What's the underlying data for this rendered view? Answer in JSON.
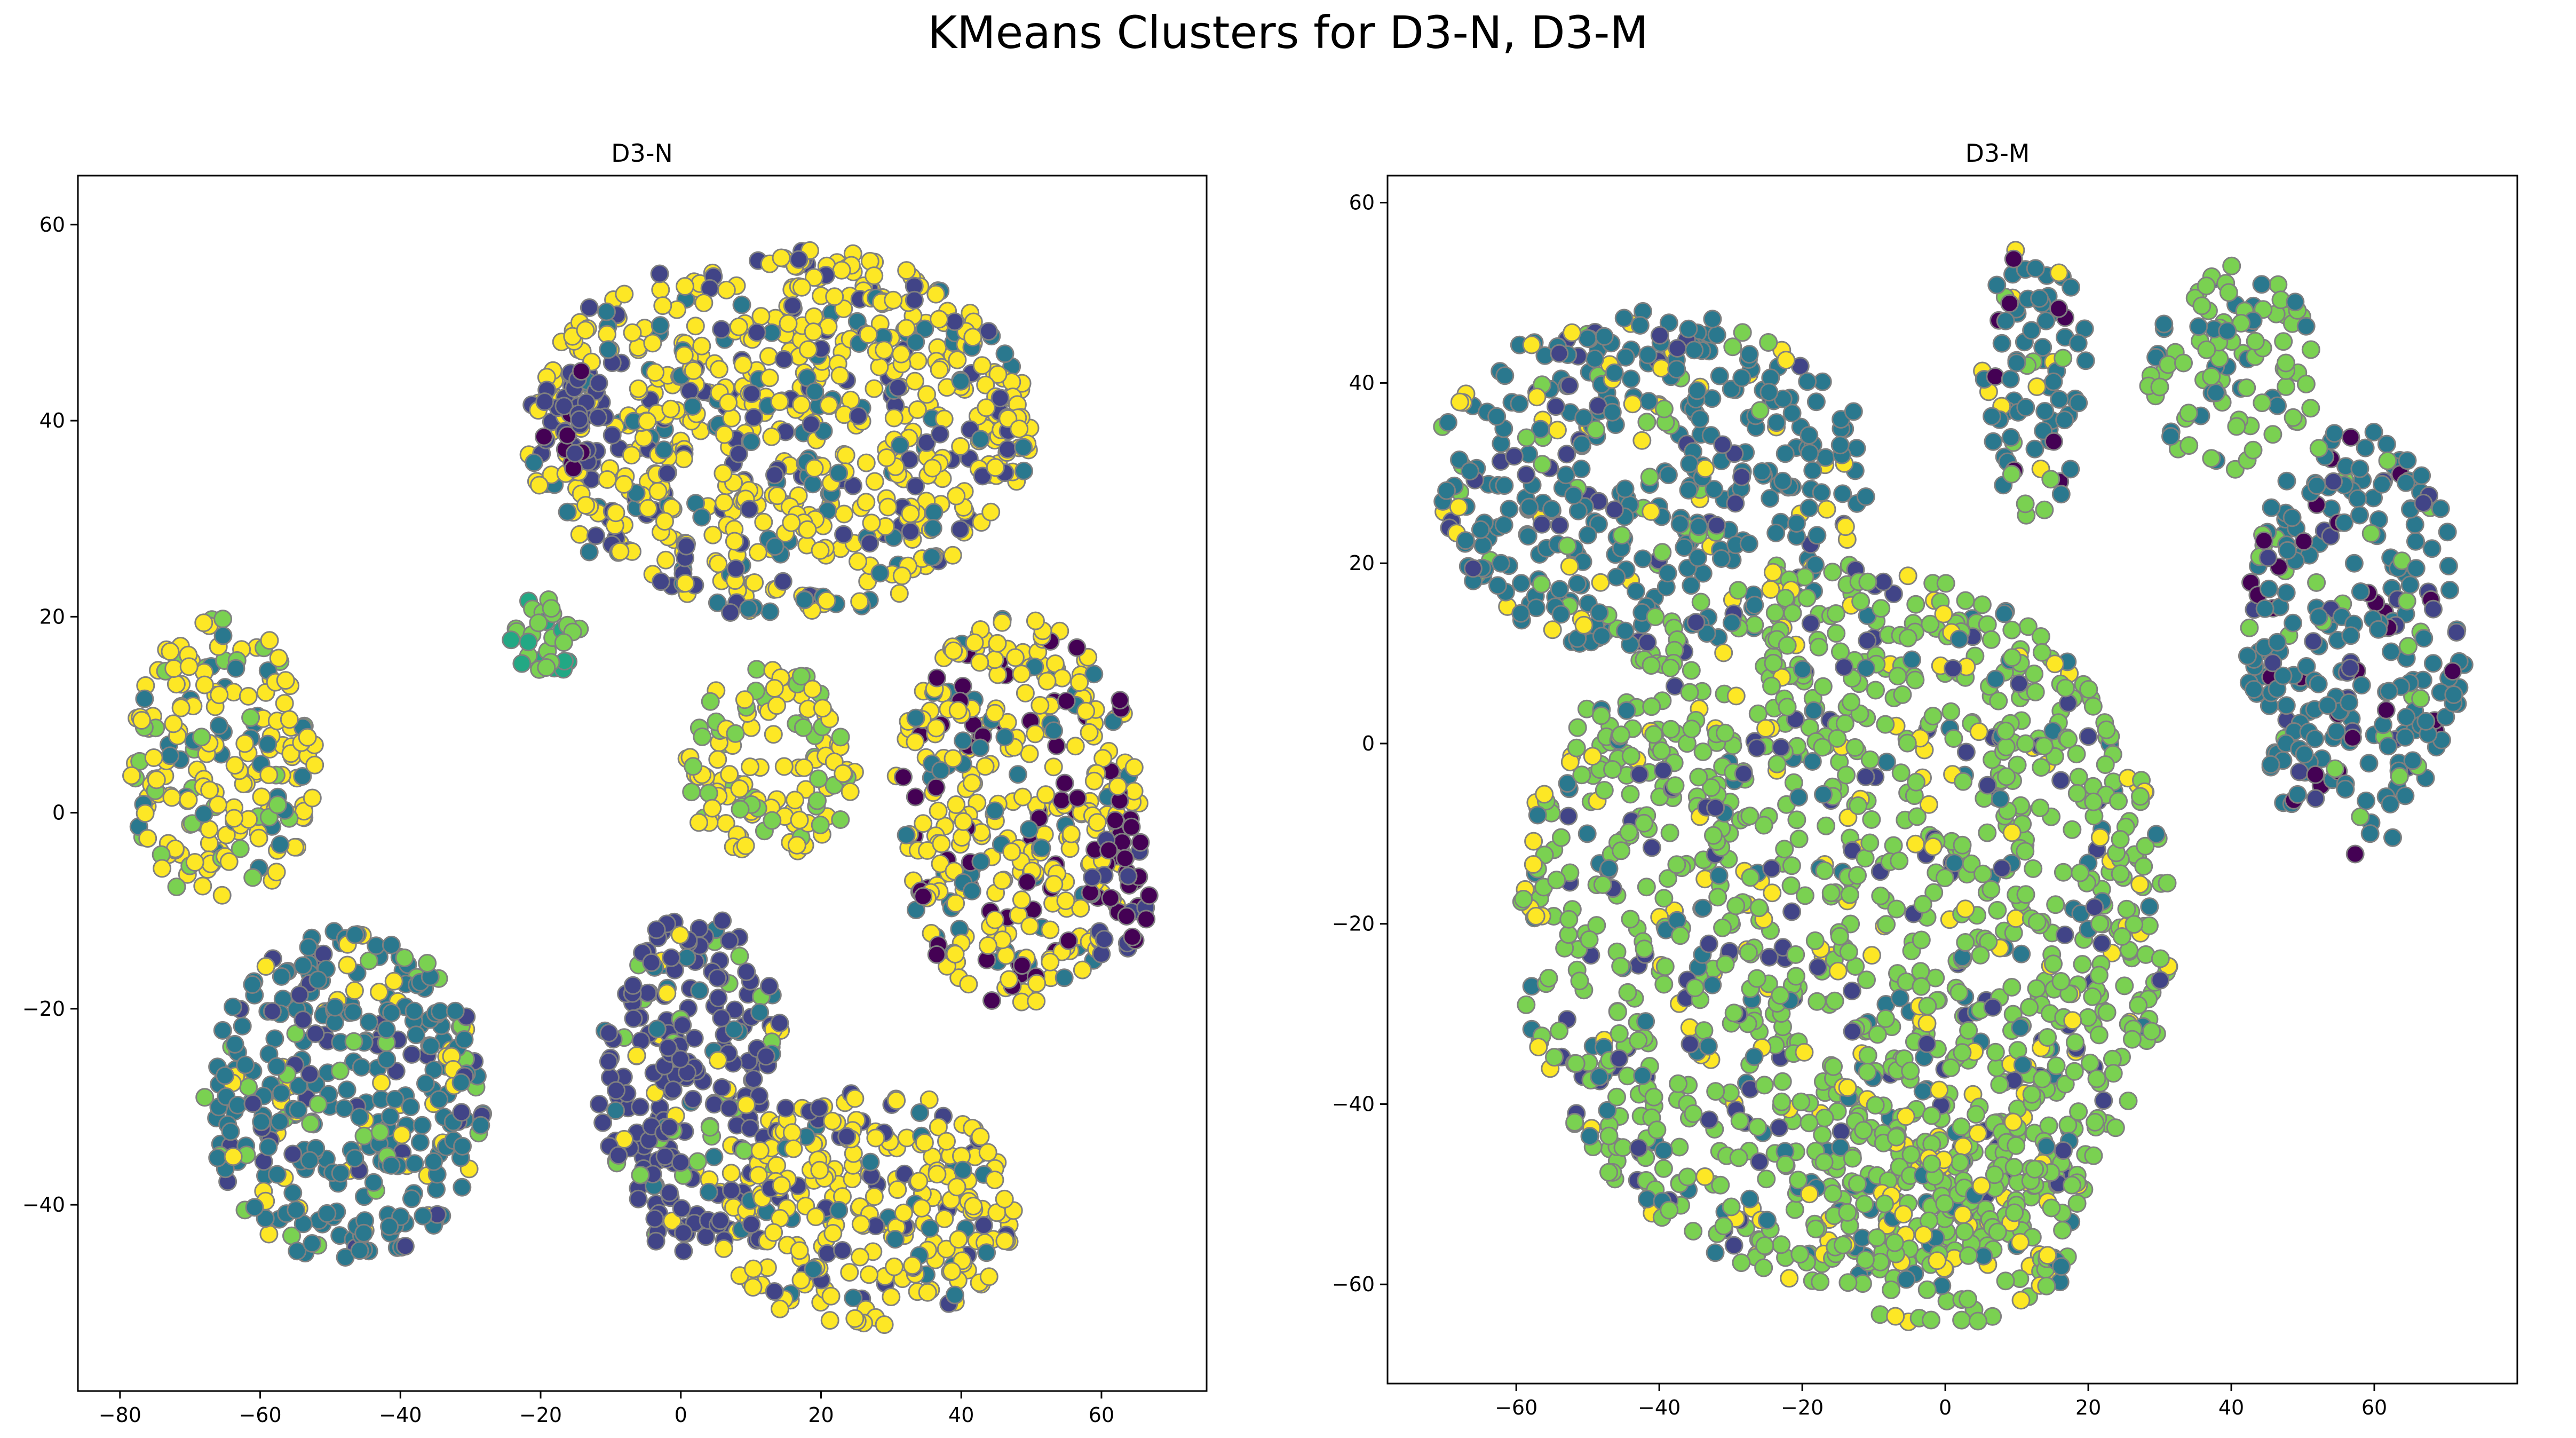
{
  "figure": {
    "title": "KMeans Clusters for D3-N, D3-M"
  },
  "palette": {
    "cluster_colors": [
      "#440154",
      "#414487",
      "#2a788e",
      "#22a884",
      "#7ad151",
      "#fde725"
    ],
    "edge_color": "#808080",
    "axes_color": "#000000",
    "background": "#ffffff"
  },
  "chart_data": [
    {
      "type": "scatter",
      "title": "D3-N",
      "xlabel": "",
      "ylabel": "",
      "xlim": [
        -86,
        75
      ],
      "ylim": [
        -59,
        65
      ],
      "xticks": [
        -80,
        -60,
        -40,
        -20,
        0,
        20,
        40,
        60
      ],
      "yticks": [
        -40,
        -20,
        0,
        20,
        40,
        60
      ],
      "grid": false,
      "legend": "none",
      "color_by": "cluster (viridis colormap)",
      "regions": [
        {
          "x_range": [
            -79,
            -52
          ],
          "y_range": [
            -10,
            20
          ],
          "dominant_cluster": 5,
          "other_clusters": [
            4,
            2
          ]
        },
        {
          "x_range": [
            -68,
            -28
          ],
          "y_range": [
            -46,
            -12
          ],
          "dominant_cluster": 2,
          "other_clusters": [
            1,
            4,
            5
          ]
        },
        {
          "x_range": [
            -22,
            50
          ],
          "y_range": [
            20,
            58
          ],
          "dominant_cluster": 5,
          "other_clusters": [
            2,
            1
          ]
        },
        {
          "x_range": [
            -20,
            -10
          ],
          "y_range": [
            35,
            46
          ],
          "dominant_cluster": 1,
          "other_clusters": [
            0
          ]
        },
        {
          "x_range": [
            -25,
            -14
          ],
          "y_range": [
            14,
            22
          ],
          "dominant_cluster": 4,
          "other_clusters": [
            3
          ]
        },
        {
          "x_range": [
            0,
            25
          ],
          "y_range": [
            -5,
            15
          ],
          "dominant_cluster": 5,
          "other_clusters": [
            4
          ]
        },
        {
          "x_range": [
            -12,
            15
          ],
          "y_range": [
            -45,
            -10
          ],
          "dominant_cluster": 1,
          "other_clusters": [
            2,
            4,
            5
          ]
        },
        {
          "x_range": [
            5,
            48
          ],
          "y_range": [
            -53,
            -28
          ],
          "dominant_cluster": 5,
          "other_clusters": [
            2,
            1
          ]
        },
        {
          "x_range": [
            30,
            66
          ],
          "y_range": [
            -20,
            20
          ],
          "dominant_cluster": 5,
          "other_clusters": [
            2,
            0
          ]
        },
        {
          "x_range": [
            58,
            67
          ],
          "y_range": [
            -16,
            0
          ],
          "dominant_cluster": 0,
          "other_clusters": [
            1
          ]
        }
      ],
      "approx_point_count": 2400
    },
    {
      "type": "scatter",
      "title": "D3-M",
      "xlabel": "",
      "ylabel": "",
      "xlim": [
        -78,
        80
      ],
      "ylim": [
        -71,
        63
      ],
      "xticks": [
        -60,
        -40,
        -20,
        0,
        20,
        40,
        60
      ],
      "yticks": [
        -60,
        -40,
        -20,
        0,
        20,
        40,
        60
      ],
      "grid": false,
      "legend": "none",
      "color_by": "cluster (viridis colormap)",
      "regions": [
        {
          "x_range": [
            -72,
            -10
          ],
          "y_range": [
            10,
            48
          ],
          "dominant_cluster": 2,
          "other_clusters": [
            4,
            1,
            5
          ]
        },
        {
          "x_range": [
            -60,
            32
          ],
          "y_range": [
            -60,
            20
          ],
          "dominant_cluster": 4,
          "other_clusters": [
            2,
            1,
            5
          ]
        },
        {
          "x_range": [
            5,
            20
          ],
          "y_range": [
            25,
            56
          ],
          "dominant_cluster": 2,
          "other_clusters": [
            4,
            5,
            0
          ]
        },
        {
          "x_range": [
            -20,
            20
          ],
          "y_range": [
            -65,
            -40
          ],
          "dominant_cluster": 4,
          "other_clusters": [
            2,
            5
          ]
        },
        {
          "x_range": [
            28,
            52
          ],
          "y_range": [
            30,
            53
          ],
          "dominant_cluster": 4,
          "other_clusters": [
            2
          ]
        },
        {
          "x_range": [
            42,
            73
          ],
          "y_range": [
            -13,
            35
          ],
          "dominant_cluster": 2,
          "other_clusters": [
            4,
            1,
            0
          ]
        }
      ],
      "approx_point_count": 2400
    }
  ]
}
